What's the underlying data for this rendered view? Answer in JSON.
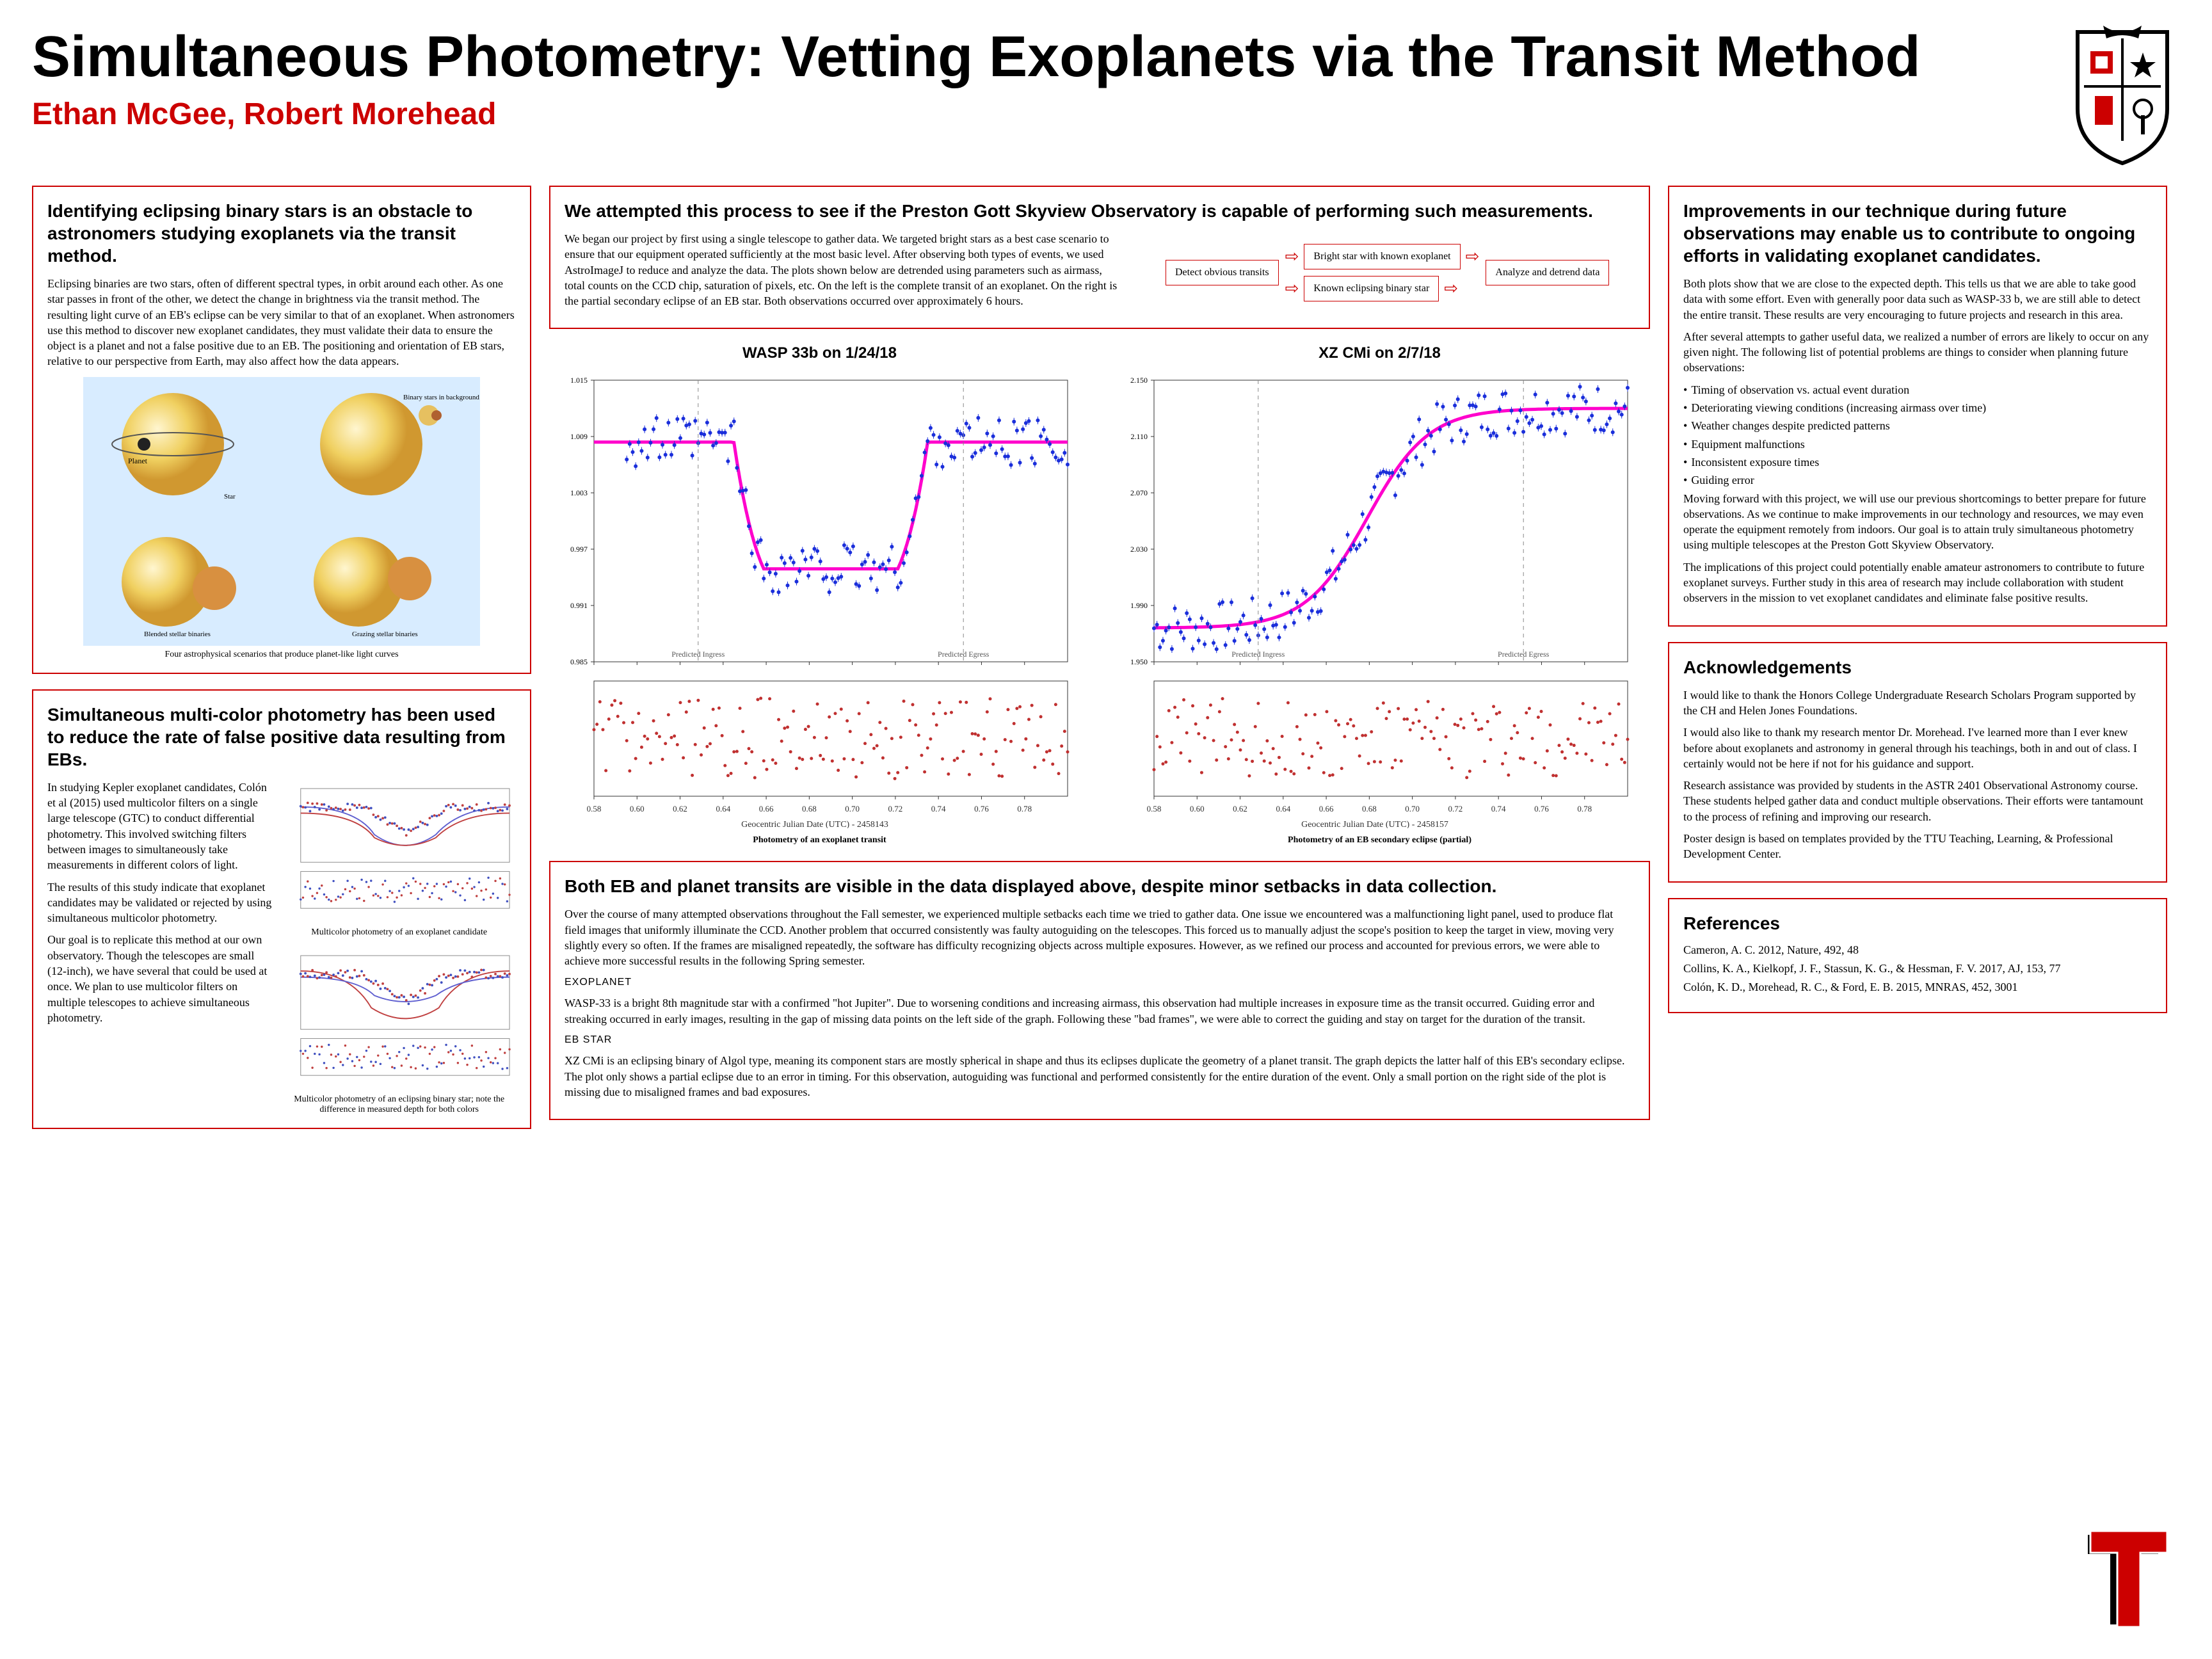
{
  "title": "Simultaneous Photometry: Vetting Exoplanets via the Transit Method",
  "authors": "Ethan McGee, Robert Morehead",
  "accent_color": "#cc0000",
  "left1": {
    "heading": "Identifying eclipsing binary stars is an obstacle to astronomers studying exoplanets via the transit method.",
    "body": "Eclipsing binaries are two stars, often of different spectral types, in orbit around each other. As one star passes in front of the other, we detect the change in brightness via the transit method. The resulting light curve of an EB's eclipse can be very similar to that of an exoplanet. When astronomers use this method to discover new exoplanet candidates, they must validate their data to ensure the object is a planet and not a false positive due to an EB. The positioning and orientation of EB stars, relative to our perspective from Earth, may also affect how the data appears.",
    "caption": "Four astrophysical scenarios that produce planet-like light curves"
  },
  "left2": {
    "heading": "Simultaneous multi-color photometry has been used to reduce the rate of false positive data resulting from EBs.",
    "p1": "In studying Kepler exoplanet candidates, Colón et al (2015) used multicolor filters on a single large telescope (GTC) to conduct differential photometry. This involved switching filters between images to simultaneously take measurements in different colors of light.",
    "p2": "The results of this study indicate that exoplanet candidates may be validated or rejected by using simultaneous multicolor photometry.",
    "p3": "Our goal is to replicate this method at our own observatory. Though the telescopes are small (12-inch), we have several that could be used at once. We plan to use multicolor filters on multiple telescopes to achieve simultaneous photometry.",
    "cap1": "Multicolor photometry of an exoplanet candidate",
    "cap2": "Multicolor photometry of an eclipsing binary star; note the difference in measured depth for both colors"
  },
  "mid_top": {
    "heading": "We attempted this process to see if the Preston Gott Skyview Observatory is capable of performing such measurements.",
    "body": "We began our project by first using a single telescope to gather data. We targeted bright stars as a best case scenario to ensure that our equipment operated sufficiently at the most basic level. After observing both types of events, we used AstroImageJ to reduce and analyze the data. The plots shown below are detrended using parameters such as airmass, total counts on the CCD chip, saturation of pixels, etc. On the left is the complete transit of an exoplanet. On the right is the partial secondary eclipse of an EB star. Both observations occurred over approximately 6 hours.",
    "flow": {
      "a": "Detect obvious transits",
      "b1": "Bright star with known exoplanet",
      "b2": "Known eclipsing binary star",
      "c": "Analyze and detrend data"
    }
  },
  "charts": {
    "wasp": {
      "title": "WASP 33b on 1/24/18",
      "caption": "Photometry of an exoplanet transit",
      "xlim": [
        0.58,
        0.8
      ],
      "ylim_top": [
        0.985,
        1.015
      ],
      "ylim_bot": [
        0.94,
        0.97
      ],
      "xticks": [
        0.58,
        0.6,
        0.62,
        0.64,
        0.66,
        0.68,
        0.7,
        0.72,
        0.74,
        0.76,
        0.78
      ],
      "xlabel": "Geocentric Julian Date (UTC) - 2458143",
      "scatter_color": "#1b2fdb",
      "model_color": "#ff00cc",
      "resid_color": "#c03030",
      "egress_label": "Predicted\nEgress",
      "ingress_label": "Predicted\nIngress"
    },
    "xzcmi": {
      "title": "XZ CMi on 2/7/18",
      "caption": "Photometry of an EB secondary eclipse (partial)",
      "xlim": [
        0.58,
        0.8
      ],
      "ylim_top": [
        1.95,
        2.15
      ],
      "ylim_bot": [
        1.85,
        1.9
      ],
      "xticks": [
        0.58,
        0.6,
        0.62,
        0.64,
        0.66,
        0.68,
        0.7,
        0.72,
        0.74,
        0.76,
        0.78
      ],
      "xlabel": "Geocentric Julian Date (UTC) - 2458157"
    }
  },
  "mid_bottom": {
    "heading": "Both EB and planet transits are visible in the data displayed above, despite minor setbacks in data collection.",
    "p1": "Over the course of many attempted observations throughout the Fall semester, we experienced multiple setbacks each time we tried to gather data. One issue we encountered was a malfunctioning light panel, used to produce flat field images that uniformly illuminate the CCD. Another problem that occurred consistently was faulty autoguiding on the telescopes. This forced us to manually adjust the scope's position to keep the target in view, moving very slightly every so often. If the frames are misaligned repeatedly, the software has difficulty recognizing objects across multiple exposures. However, as we refined our process and accounted for previous errors, we were able to achieve more successful results in the following Spring semester.",
    "h_exo": "EXOPLANET",
    "p2": "WASP-33 is a bright 8th magnitude star with a confirmed \"hot Jupiter\". Due to worsening conditions and increasing airmass, this observation had multiple increases in exposure time as the transit occurred. Guiding error and streaking occurred in early images, resulting in the gap of missing data points on the left side of the graph. Following these \"bad frames\", we were able to correct the guiding and stay on target for the duration of the transit.",
    "h_eb": "EB STAR",
    "p3": "XZ CMi is an eclipsing binary of Algol type, meaning its component stars are mostly spherical in shape and thus its eclipses duplicate the geometry of a planet transit. The graph depicts the latter half of this EB's secondary eclipse. The plot only shows a partial eclipse due to an error in timing. For this observation, autoguiding was functional and performed consistently for the entire duration of the event. Only a small portion on the right side of the plot is missing due to misaligned frames and bad exposures."
  },
  "right1": {
    "heading": "Improvements in our technique during future observations may enable us to contribute to ongoing efforts in validating exoplanet candidates.",
    "p1": "Both plots show that we are close to the expected depth. This tells us that we are able to take good data with some effort. Even with generally poor data such as WASP-33 b, we are still able to detect the entire transit. These results are very encouraging to future projects and research in this area.",
    "p2": "After several attempts to gather useful data, we realized a number of errors are likely to occur on any given night. The following list of potential problems are things to consider when planning future observations:",
    "issues": [
      "Timing of observation vs. actual event duration",
      "Deteriorating viewing conditions (increasing airmass over time)",
      "Weather changes despite predicted patterns",
      "Equipment malfunctions",
      "Inconsistent exposure times",
      "Guiding error"
    ],
    "p3": "Moving forward with this project, we will use our previous shortcomings to better prepare for future observations. As we continue to make improvements in our technology and resources, we may even operate the equipment remotely from indoors. Our goal is to attain truly simultaneous photometry using multiple telescopes at the Preston Gott Skyview Observatory.",
    "p4": "The implications of this project could potentially enable amateur astronomers to contribute to future exoplanet surveys. Further study in this area of research may include collaboration with student observers in the mission to vet exoplanet candidates and eliminate false positive results."
  },
  "ack": {
    "heading": "Acknowledgements",
    "p1": "I would like to thank the Honors College Undergraduate Research Scholars Program supported by the CH and Helen Jones Foundations.",
    "p2": "I would also like to thank my research mentor Dr. Morehead. I've learned more than I ever knew before about exoplanets and astronomy in general through his teachings, both in and out of class. I certainly would not be here if not for his guidance and support.",
    "p3": "Research assistance was provided by students in the ASTR 2401 Observational Astronomy course. These students helped gather data and conduct multiple observations. Their efforts were tantamount to the process of refining and improving our research.",
    "p4": "Poster design is based on templates provided by the TTU Teaching, Learning, & Professional Development Center."
  },
  "refs": {
    "heading": "References",
    "r1": "Cameron, A. C. 2012, Nature, 492, 48",
    "r2": "Collins, K. A., Kielkopf, J. F., Stassun, K. G., & Hessman, F. V. 2017, AJ, 153, 77",
    "r3": "Colón, K. D., Morehead, R. C., & Ford, E. B. 2015, MNRAS, 452, 3001"
  }
}
